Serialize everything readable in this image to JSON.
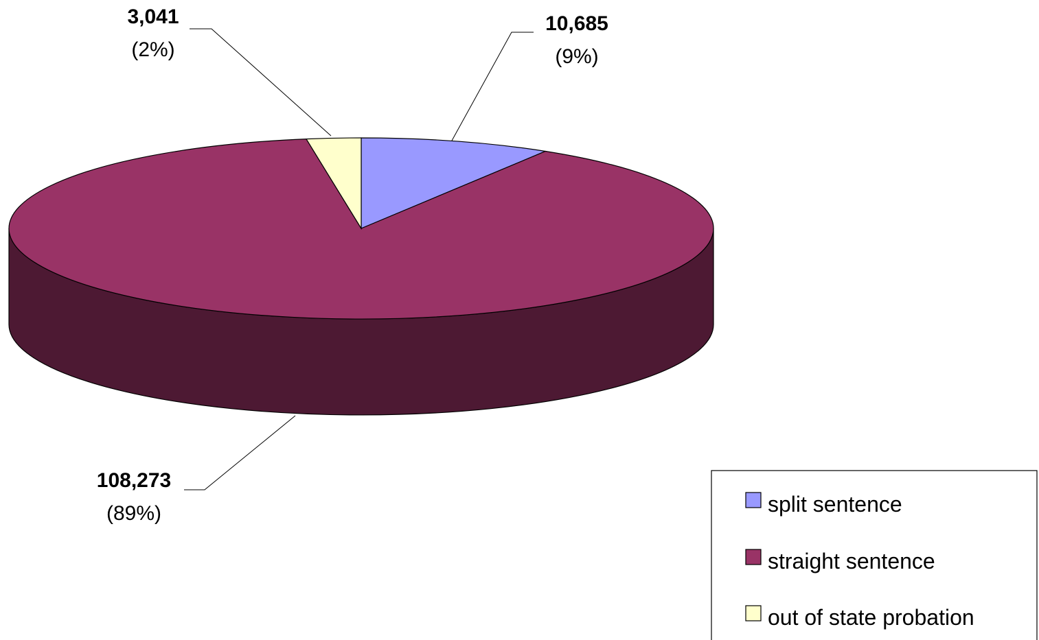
{
  "chart_data": {
    "type": "pie",
    "style": "3d-pie",
    "slices": [
      {
        "name": "split sentence",
        "value": 10685,
        "value_label": "10,685",
        "percent_label": "(9%)",
        "color": "#9999FF"
      },
      {
        "name": "straight sentence",
        "value": 108273,
        "value_label": "108,273",
        "percent_label": "(89%)",
        "color": "#993366"
      },
      {
        "name": "out of state probation",
        "value": 3041,
        "value_label": "3,041",
        "percent_label": "(2%)",
        "color": "#FFFFCC"
      }
    ],
    "legend": {
      "position": "bottom-right"
    },
    "side_color": "#4D1933",
    "outline_color": "#000000"
  }
}
